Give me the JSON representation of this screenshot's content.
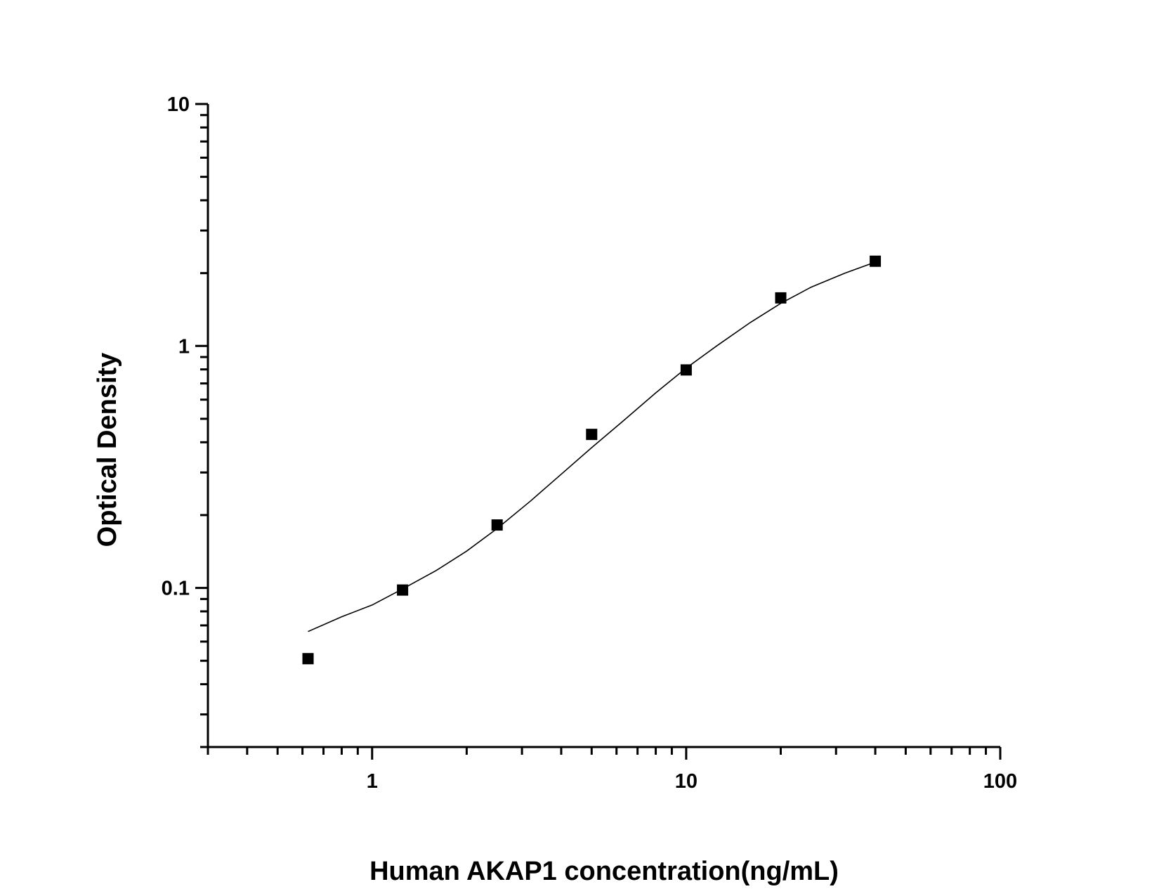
{
  "chart_data": {
    "type": "scatter",
    "title": "",
    "xlabel": "Human AKAP1 concentration(ng/mL)",
    "ylabel": "Optical Density",
    "xscale": "log",
    "yscale": "log",
    "xlim": [
      0.3,
      100
    ],
    "ylim": [
      0.022,
      10
    ],
    "xticks": [
      {
        "value": 1,
        "label": "1"
      },
      {
        "value": 10,
        "label": "10"
      },
      {
        "value": 100,
        "label": "100"
      }
    ],
    "yticks": [
      {
        "value": 0.1,
        "label": "0.1"
      },
      {
        "value": 1,
        "label": "1"
      },
      {
        "value": 10,
        "label": "10"
      }
    ],
    "grid": false,
    "marker": "square",
    "color": "#000000",
    "points": {
      "x": [
        0.625,
        1.25,
        2.5,
        5,
        10,
        20,
        40
      ],
      "y": [
        0.051,
        0.098,
        0.182,
        0.431,
        0.796,
        1.58,
        2.24
      ]
    },
    "fit_curve": {
      "x": [
        0.625,
        0.8,
        1.0,
        1.25,
        1.6,
        2.0,
        2.5,
        3.2,
        4.0,
        5.0,
        6.3,
        8.0,
        10,
        12.5,
        16,
        20,
        25,
        32,
        40
      ],
      "y": [
        0.066,
        0.076,
        0.085,
        0.099,
        0.118,
        0.142,
        0.176,
        0.229,
        0.295,
        0.38,
        0.49,
        0.64,
        0.81,
        1.0,
        1.25,
        1.5,
        1.75,
        2.0,
        2.22
      ]
    }
  }
}
